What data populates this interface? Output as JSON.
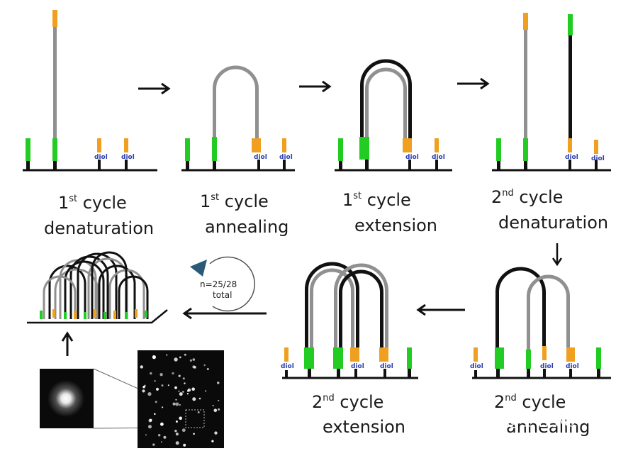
{
  "panels": [
    {
      "num": "1",
      "sup": "st",
      "word": "cycle",
      "step": "denaturation"
    },
    {
      "num": "1",
      "sup": "st",
      "word": "cycle",
      "step": "annealing"
    },
    {
      "num": "1",
      "sup": "st",
      "word": "cycle",
      "step": "extension"
    },
    {
      "num": "2",
      "sup": "nd",
      "word": "cycle",
      "step": "denaturation"
    },
    {
      "num": "2",
      "sup": "nd",
      "word": "cycle",
      "step": "annealing"
    },
    {
      "num": "2",
      "sup": "nd",
      "word": "cycle",
      "step": "extension"
    }
  ],
  "diol_label": "diol",
  "cycle_counter": {
    "line1": "n=25/28",
    "line2": "total"
  },
  "watermark": "知乎 @生信小趣",
  "colors": {
    "adapter_green": "#22cc22",
    "primer_orange": "#f0a020",
    "template_grey": "#909090",
    "copy_black": "#111111",
    "surface": "#111111"
  }
}
